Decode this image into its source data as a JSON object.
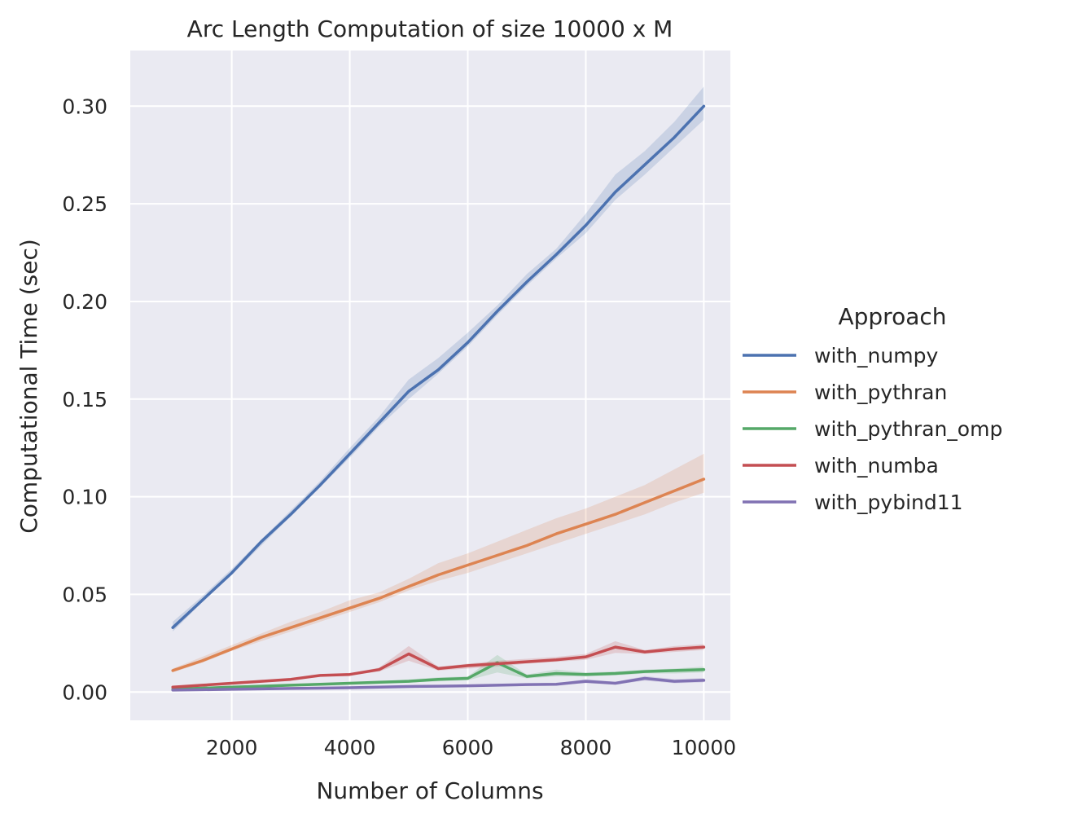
{
  "chart_data": {
    "type": "line",
    "title": "Arc Length Computation of size 10000 x M",
    "xlabel": "Number of Columns",
    "ylabel": "Computational Time (sec)",
    "xlim": [
      280,
      10450
    ],
    "ylim": [
      -0.0145,
      0.3285
    ],
    "xticks": [
      2000,
      4000,
      6000,
      8000,
      10000
    ],
    "yticks": [
      0.0,
      0.05,
      0.1,
      0.15,
      0.2,
      0.25,
      0.3
    ],
    "ytick_labels": [
      "0.00",
      "0.05",
      "0.10",
      "0.15",
      "0.20",
      "0.25",
      "0.30"
    ],
    "grid": true,
    "background": "#EAEAF2",
    "legend": {
      "title": "Approach",
      "position": "outside-right"
    },
    "x": [
      1000,
      1500,
      2000,
      2500,
      3000,
      3500,
      4000,
      4500,
      5000,
      5500,
      6000,
      6500,
      7000,
      7500,
      8000,
      8500,
      9000,
      9500,
      10000
    ],
    "series": [
      {
        "name": "with_numpy",
        "color": "#4C72B0",
        "values": [
          0.033,
          0.047,
          0.061,
          0.077,
          0.091,
          0.106,
          0.122,
          0.138,
          0.154,
          0.165,
          0.179,
          0.195,
          0.21,
          0.224,
          0.239,
          0.256,
          0.27,
          0.284,
          0.3
        ],
        "ci_lower": [
          0.031,
          0.046,
          0.06,
          0.075,
          0.09,
          0.105,
          0.12,
          0.136,
          0.15,
          0.163,
          0.177,
          0.193,
          0.208,
          0.222,
          0.235,
          0.252,
          0.265,
          0.279,
          0.293
        ],
        "ci_upper": [
          0.036,
          0.049,
          0.063,
          0.078,
          0.093,
          0.108,
          0.125,
          0.141,
          0.16,
          0.171,
          0.184,
          0.198,
          0.214,
          0.227,
          0.245,
          0.265,
          0.277,
          0.292,
          0.31
        ]
      },
      {
        "name": "with_pythran",
        "color": "#DD8452",
        "values": [
          0.011,
          0.016,
          0.022,
          0.028,
          0.033,
          0.038,
          0.043,
          0.048,
          0.054,
          0.06,
          0.065,
          0.07,
          0.075,
          0.081,
          0.086,
          0.091,
          0.097,
          0.103,
          0.109
        ],
        "ci_lower": [
          0.01,
          0.015,
          0.021,
          0.026,
          0.031,
          0.036,
          0.041,
          0.046,
          0.052,
          0.057,
          0.061,
          0.066,
          0.071,
          0.076,
          0.081,
          0.086,
          0.091,
          0.097,
          0.102
        ],
        "ci_upper": [
          0.012,
          0.018,
          0.024,
          0.03,
          0.036,
          0.041,
          0.047,
          0.051,
          0.058,
          0.066,
          0.071,
          0.077,
          0.083,
          0.089,
          0.094,
          0.1,
          0.106,
          0.114,
          0.122
        ]
      },
      {
        "name": "with_pythran_omp",
        "color": "#55A868",
        "values": [
          0.0015,
          0.002,
          0.0025,
          0.003,
          0.0035,
          0.004,
          0.0045,
          0.005,
          0.0055,
          0.0065,
          0.007,
          0.015,
          0.008,
          0.0095,
          0.009,
          0.0095,
          0.0105,
          0.011,
          0.0115
        ],
        "ci_lower": [
          0.001,
          0.0015,
          0.002,
          0.0025,
          0.003,
          0.0035,
          0.004,
          0.0045,
          0.005,
          0.0055,
          0.006,
          0.01,
          0.007,
          0.008,
          0.008,
          0.0085,
          0.0095,
          0.0095,
          0.01
        ],
        "ci_upper": [
          0.002,
          0.0025,
          0.003,
          0.0035,
          0.004,
          0.0045,
          0.005,
          0.0055,
          0.0065,
          0.0075,
          0.008,
          0.019,
          0.009,
          0.0115,
          0.01,
          0.0105,
          0.0115,
          0.012,
          0.013
        ]
      },
      {
        "name": "with_numba",
        "color": "#C44E52",
        "values": [
          0.0025,
          0.0035,
          0.0045,
          0.0055,
          0.0065,
          0.0085,
          0.009,
          0.0115,
          0.0195,
          0.012,
          0.0135,
          0.0145,
          0.0155,
          0.0165,
          0.018,
          0.023,
          0.0205,
          0.022,
          0.023
        ],
        "ci_lower": [
          0.002,
          0.003,
          0.004,
          0.005,
          0.006,
          0.008,
          0.0085,
          0.0105,
          0.016,
          0.011,
          0.012,
          0.013,
          0.0145,
          0.0155,
          0.0165,
          0.02,
          0.0195,
          0.0205,
          0.0215
        ],
        "ci_upper": [
          0.003,
          0.004,
          0.005,
          0.006,
          0.007,
          0.009,
          0.0095,
          0.0125,
          0.0235,
          0.013,
          0.0145,
          0.016,
          0.017,
          0.018,
          0.0195,
          0.026,
          0.0215,
          0.0235,
          0.0245
        ]
      },
      {
        "name": "with_pybind11",
        "color": "#8172B3",
        "values": [
          0.001,
          0.0012,
          0.0014,
          0.0016,
          0.0018,
          0.002,
          0.0022,
          0.0025,
          0.0028,
          0.003,
          0.0032,
          0.0035,
          0.0038,
          0.004,
          0.0055,
          0.0045,
          0.007,
          0.0055,
          0.006
        ],
        "ci_lower": [
          0.0008,
          0.001,
          0.0012,
          0.0014,
          0.0016,
          0.0018,
          0.002,
          0.0022,
          0.0025,
          0.0027,
          0.0029,
          0.0032,
          0.0034,
          0.0036,
          0.0045,
          0.0038,
          0.0058,
          0.0045,
          0.0049
        ],
        "ci_upper": [
          0.0012,
          0.0014,
          0.0016,
          0.0018,
          0.002,
          0.0022,
          0.0025,
          0.0028,
          0.0031,
          0.0034,
          0.0036,
          0.0039,
          0.0042,
          0.0045,
          0.0066,
          0.0052,
          0.0082,
          0.0066,
          0.0072
        ]
      }
    ]
  }
}
